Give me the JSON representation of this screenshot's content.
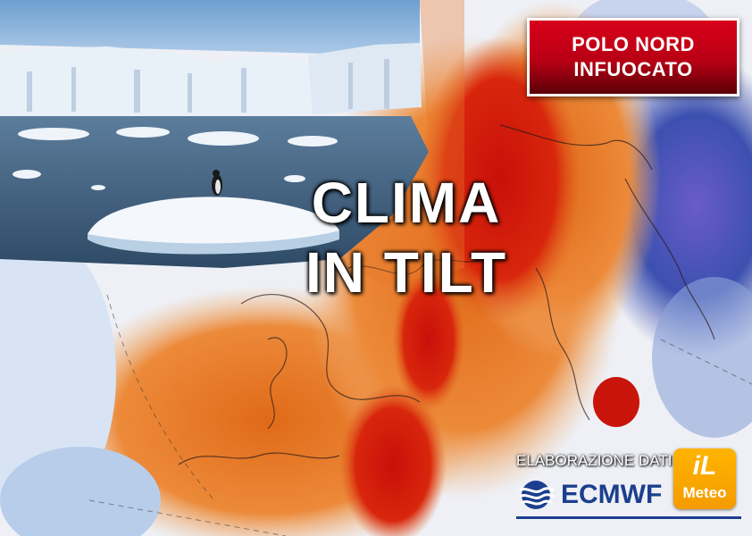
{
  "badge": {
    "line1": "POLO NORD",
    "line2": "INFUOCATO"
  },
  "headline": {
    "line1": "CLIMA",
    "line2": "IN TILT"
  },
  "credit": {
    "label": "ELABORAZIONE DATI",
    "brand": "ECMWF"
  },
  "logo": {
    "top": "iL",
    "bottom": "Meteo"
  },
  "colors": {
    "badge_red": "#c8001a",
    "hot": "#d41a00",
    "warm": "#e8782a",
    "cold": "#4a4aa8",
    "ecmwf_blue": "#1b3f8e",
    "logo_orange": "#f7a500"
  }
}
